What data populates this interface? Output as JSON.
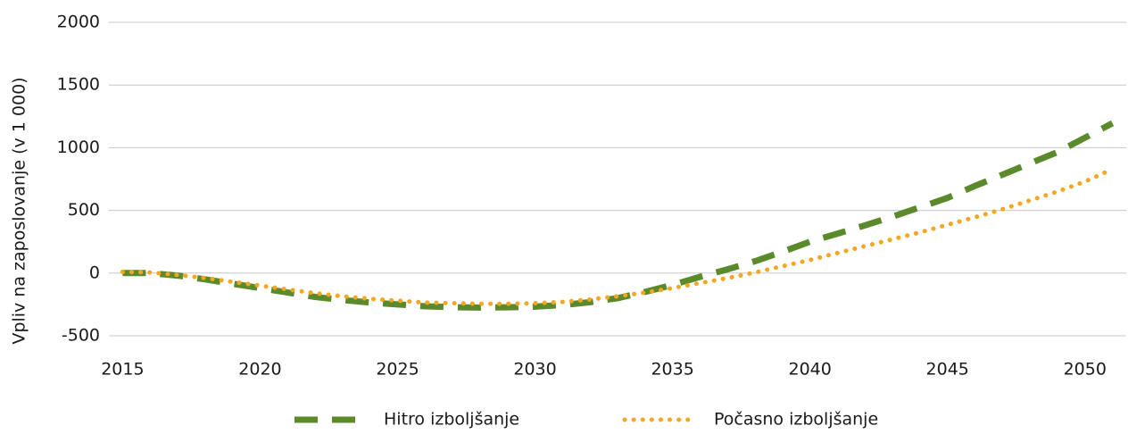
{
  "chart_data": {
    "type": "line",
    "y_axis_label": "Vpliv na zaposlovanje (v 1 000)",
    "x": [
      2015,
      2016,
      2017,
      2018,
      2019,
      2020,
      2021,
      2022,
      2023,
      2024,
      2025,
      2026,
      2027,
      2028,
      2029,
      2030,
      2031,
      2032,
      2033,
      2034,
      2035,
      2036,
      2037,
      2038,
      2039,
      2040,
      2041,
      2042,
      2043,
      2044,
      2045,
      2046,
      2047,
      2048,
      2049,
      2050,
      2051
    ],
    "series": [
      {
        "name": "Hitro izboljšanje",
        "color": "#5a8a2b",
        "dash": "dashed",
        "values": [
          0,
          0,
          -20,
          -50,
          -85,
          -120,
          -155,
          -190,
          -215,
          -235,
          -250,
          -265,
          -272,
          -275,
          -273,
          -268,
          -255,
          -232,
          -200,
          -150,
          -95,
          -30,
          30,
          95,
          170,
          250,
          315,
          380,
          450,
          525,
          600,
          695,
          785,
          875,
          965,
          1080,
          1195
        ]
      },
      {
        "name": "Počasno izboljšanje",
        "color": "#f5a623",
        "dash": "dotted",
        "values": [
          10,
          5,
          -15,
          -40,
          -70,
          -100,
          -130,
          -160,
          -185,
          -205,
          -220,
          -235,
          -240,
          -245,
          -245,
          -240,
          -230,
          -210,
          -185,
          -155,
          -120,
          -80,
          -40,
          5,
          55,
          105,
          160,
          215,
          270,
          325,
          385,
          445,
          510,
          580,
          650,
          730,
          830
        ]
      }
    ],
    "xlim": [
      2014.5,
      2051.5
    ],
    "xticks": [
      2015,
      2020,
      2025,
      2030,
      2035,
      2040,
      2045,
      2050
    ],
    "ylim": [
      -500,
      2000
    ],
    "yticks": [
      -500,
      0,
      500,
      1000,
      1500,
      2000
    ],
    "grid": true,
    "legend": "bottom"
  }
}
